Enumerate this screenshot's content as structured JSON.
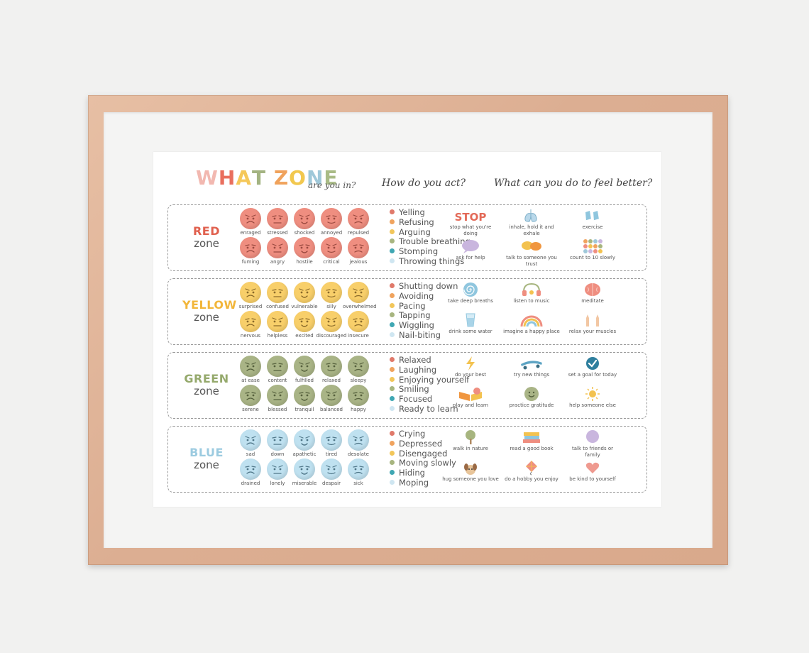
{
  "title": {
    "letters": [
      {
        "ch": "W",
        "color": "#f2b8b0"
      },
      {
        "ch": "H",
        "color": "#e96f5e"
      },
      {
        "ch": "A",
        "color": "#f5c85a"
      },
      {
        "ch": "T",
        "color": "#a3b381"
      },
      {
        "ch": " ",
        "color": "#ffffff"
      },
      {
        "ch": "Z",
        "color": "#f0a25b"
      },
      {
        "ch": "O",
        "color": "#f2c84f"
      },
      {
        "ch": "N",
        "color": "#9fc8d9"
      },
      {
        "ch": "E",
        "color": "#a9bb86"
      }
    ],
    "subtitle": "are you in?"
  },
  "headers": {
    "act": "How do you act?",
    "better": "What can you do to feel better?"
  },
  "act_dot_colors": [
    "#e0796a",
    "#f0a35e",
    "#f2c65a",
    "#a7b57f",
    "#3fa7b3",
    "#cfe6f1"
  ],
  "zones": [
    {
      "label_word": "RED",
      "label_zone": "zone",
      "label_color": "#e0604e",
      "face_color": "#ef8e80",
      "feature_color": "#9a4a40",
      "faces": [
        "enraged",
        "stressed",
        "shocked",
        "annoyed",
        "repulsed",
        "fuming",
        "angry",
        "hostile",
        "critical",
        "jealous"
      ],
      "acts": [
        "Yelling",
        "Refusing",
        "Arguing",
        "Trouble breathing",
        "Stomping",
        "Throwing things"
      ],
      "strategies": [
        {
          "icon": "stop-sign-icon",
          "text": "stop what you're doing",
          "word": "STOP"
        },
        {
          "icon": "lungs-icon",
          "text": "inhale, hold it and exhale"
        },
        {
          "icon": "sneakers-icon",
          "text": "exercise"
        },
        {
          "icon": "speech-bubble-help-icon",
          "text": "ask for help"
        },
        {
          "icon": "chat-bubbles-icon",
          "text": "talk to someone you trust"
        },
        {
          "icon": "counting-dots-icon",
          "text": "count to 10 slowly"
        }
      ]
    },
    {
      "label_word": "YELLOW",
      "label_zone": "zone",
      "label_color": "#f2b63a",
      "face_color": "#f8cf6a",
      "feature_color": "#8a6a2a",
      "faces": [
        "surprised",
        "confused",
        "vulnerable",
        "silly",
        "overwhelmed",
        "nervous",
        "helpless",
        "excited",
        "discouraged",
        "insecure"
      ],
      "acts": [
        "Shutting down",
        "Avoiding",
        "Pacing",
        "Tapping",
        "Wiggling",
        "Nail-biting"
      ],
      "strategies": [
        {
          "icon": "spiral-breath-icon",
          "text": "take deep breaths"
        },
        {
          "icon": "headphones-icon",
          "text": "listen to music"
        },
        {
          "icon": "brain-icon",
          "text": "meditate"
        },
        {
          "icon": "water-glass-icon",
          "text": "drink some water"
        },
        {
          "icon": "rainbow-icon",
          "text": "imagine a happy place"
        },
        {
          "icon": "raised-hands-icon",
          "text": "relax your muscles"
        }
      ]
    },
    {
      "label_word": "GREEN",
      "label_zone": "zone",
      "label_color": "#95a96c",
      "face_color": "#a9b486",
      "feature_color": "#55603c",
      "faces": [
        "at ease",
        "content",
        "fulfilled",
        "relaxed",
        "sleepy",
        "serene",
        "blessed",
        "tranquil",
        "balanced",
        "happy"
      ],
      "acts": [
        "Relaxed",
        "Laughing",
        "Enjoying yourself",
        "Smiling",
        "Focused",
        "Ready to learn"
      ],
      "strategies": [
        {
          "icon": "lightning-icon",
          "text": "do your best"
        },
        {
          "icon": "skateboard-icon",
          "text": "try new things"
        },
        {
          "icon": "checkmark-badge-icon",
          "text": "set a goal for today"
        },
        {
          "icon": "open-book-icon",
          "text": "play and learn"
        },
        {
          "icon": "smiley-icon",
          "text": "practice gratitude"
        },
        {
          "icon": "sun-icon",
          "text": "help someone else"
        }
      ]
    },
    {
      "label_word": "BLUE",
      "label_zone": "zone",
      "label_color": "#9ccbe0",
      "face_color": "#bfe1f0",
      "feature_color": "#4f7688",
      "faces": [
        "sad",
        "down",
        "apathetic",
        "tired",
        "desolate",
        "drained",
        "lonely",
        "miserable",
        "despair",
        "sick"
      ],
      "acts": [
        "Crying",
        "Depressed",
        "Disengaged",
        "Moving slowly",
        "Hiding",
        "Moping"
      ],
      "strategies": [
        {
          "icon": "tree-icon",
          "text": "walk in nature"
        },
        {
          "icon": "book-stack-icon",
          "text": "read a good book"
        },
        {
          "icon": "talk-bubble-icon",
          "text": "talk to friends or family"
        },
        {
          "icon": "dog-icon",
          "text": "hug someone you love"
        },
        {
          "icon": "kite-icon",
          "text": "do a hobby you enjoy"
        },
        {
          "icon": "heart-icon",
          "text": "be kind to yourself"
        }
      ]
    }
  ]
}
